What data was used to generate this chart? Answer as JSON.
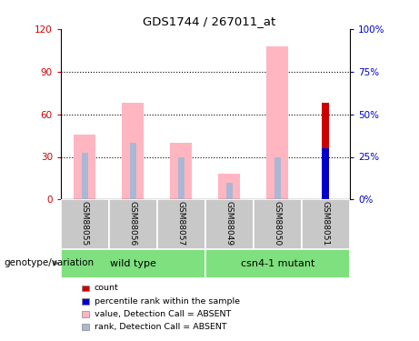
{
  "title": "GDS1744 / 267011_at",
  "samples": [
    "GSM88055",
    "GSM88056",
    "GSM88057",
    "GSM88049",
    "GSM88050",
    "GSM88051"
  ],
  "group_labels": [
    "wild type",
    "csn4-1 mutant"
  ],
  "value_absent": [
    46,
    68,
    40,
    18,
    108,
    0
  ],
  "rank_absent": [
    33,
    40,
    30,
    12,
    30,
    0
  ],
  "count_val": [
    0,
    0,
    0,
    0,
    0,
    68
  ],
  "percentile_val": [
    0,
    0,
    0,
    0,
    0,
    36
  ],
  "ylim_left": [
    0,
    120
  ],
  "ylim_right": [
    0,
    100
  ],
  "yticks_left": [
    0,
    30,
    60,
    90,
    120
  ],
  "yticks_right": [
    0,
    25,
    50,
    75,
    100
  ],
  "ytick_labels_left": [
    "0",
    "30",
    "60",
    "90",
    "120"
  ],
  "ytick_labels_right": [
    "0%",
    "25%",
    "50%",
    "75%",
    "100%"
  ],
  "color_pink": "#FFB6C1",
  "color_lightblue": "#aab8d4",
  "color_red": "#CC0000",
  "color_blue": "#0000CC",
  "color_gray_bg": "#C8C8C8",
  "color_green": "#7EE07E",
  "legend_items": [
    {
      "label": "count",
      "color": "#CC0000"
    },
    {
      "label": "percentile rank within the sample",
      "color": "#0000CC"
    },
    {
      "label": "value, Detection Call = ABSENT",
      "color": "#FFB6C1"
    },
    {
      "label": "rank, Detection Call = ABSENT",
      "color": "#aab8d4"
    }
  ],
  "xlabel_genotype": "genotype/variation",
  "left_ylabel_color": "#CC0000",
  "right_ylabel_color": "#0000CC",
  "grid_lines": [
    30,
    60,
    90
  ]
}
